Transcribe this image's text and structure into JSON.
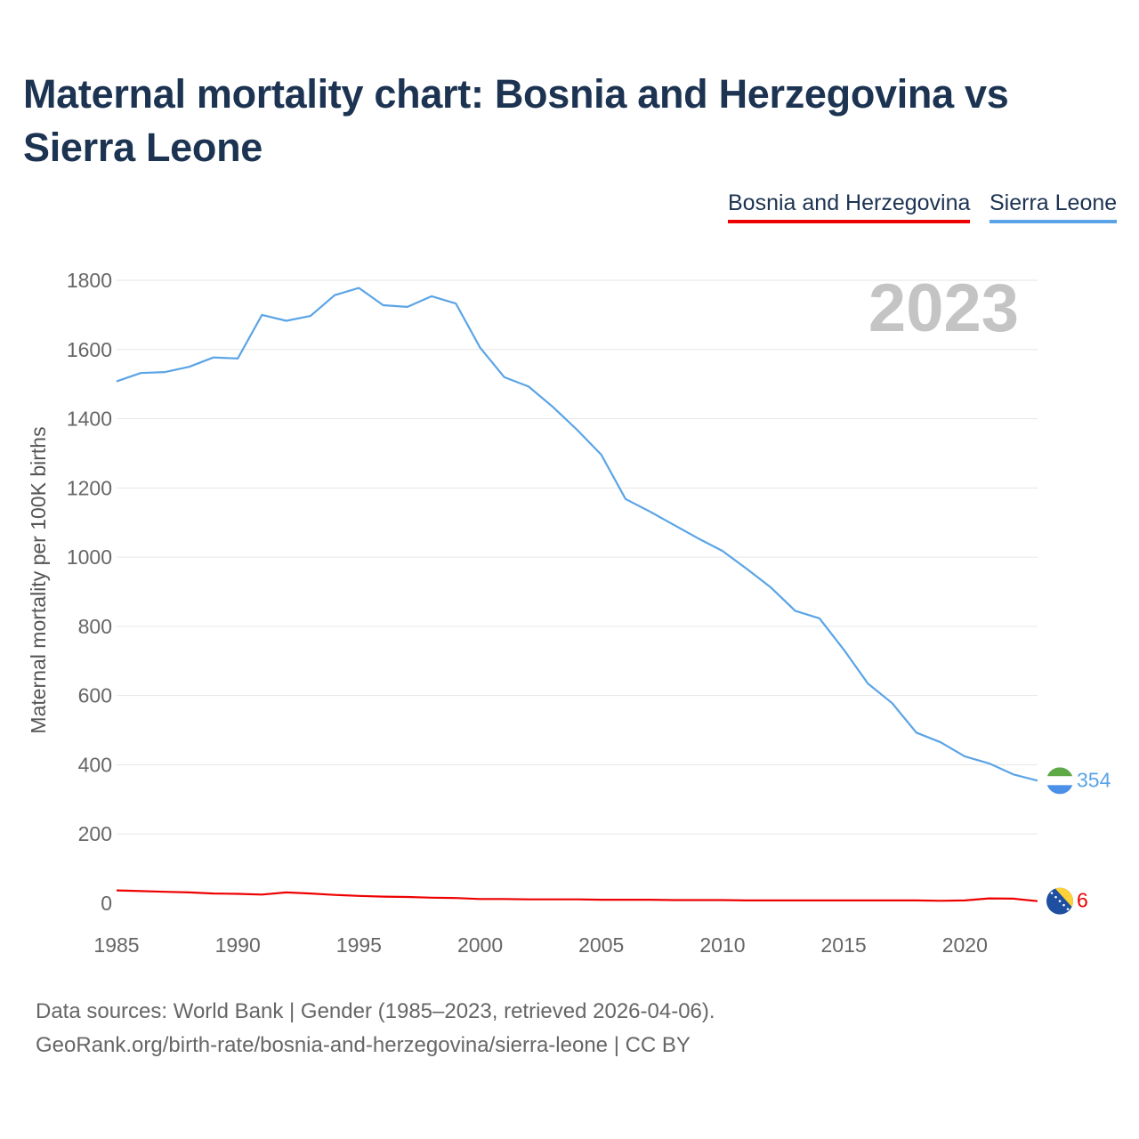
{
  "title": "Maternal mortality chart: Bosnia and Herzegovina vs Sierra Leone",
  "legend": {
    "bih": "Bosnia and Herzegovina",
    "sl": "Sierra Leone"
  },
  "year_watermark": "2023",
  "colors": {
    "title": "#1c3352",
    "bih": "#ee0000",
    "sl": "#5aa4e6",
    "grid": "#e6e6e6",
    "axis_text": "#666666",
    "watermark": "#c4c4c4"
  },
  "footer": {
    "line1": "Data sources: World Bank | Gender (1985–2023, retrieved 2026-04-06).",
    "line2": "GeoRank.org/birth-rate/bosnia-and-herzegovina/sierra-leone | CC BY"
  },
  "chart_data": {
    "type": "line",
    "title": "Maternal mortality chart: Bosnia and Herzegovina vs Sierra Leone",
    "xlabel": "",
    "ylabel": "Maternal mortality per 100K births",
    "xlim": [
      1985,
      2023
    ],
    "ylim": [
      0,
      1800
    ],
    "xticks": [
      1985,
      1990,
      1995,
      2000,
      2005,
      2010,
      2015,
      2020
    ],
    "yticks": [
      0,
      200,
      400,
      600,
      800,
      1000,
      1200,
      1400,
      1600,
      1800
    ],
    "grid": true,
    "legend_position": "top-right",
    "x": [
      1985,
      1986,
      1987,
      1988,
      1989,
      1990,
      1991,
      1992,
      1993,
      1994,
      1995,
      1996,
      1997,
      1998,
      1999,
      2000,
      2001,
      2002,
      2003,
      2004,
      2005,
      2006,
      2007,
      2008,
      2009,
      2010,
      2011,
      2012,
      2013,
      2014,
      2015,
      2016,
      2017,
      2018,
      2019,
      2020,
      2021,
      2022,
      2023
    ],
    "series": [
      {
        "name": "Sierra Leone",
        "color": "#5aa4e6",
        "end_label": "354",
        "values": [
          1508,
          1532,
          1535,
          1550,
          1577,
          1574,
          1700,
          1683,
          1697,
          1757,
          1778,
          1728,
          1723,
          1754,
          1733,
          1605,
          1520,
          1493,
          1434,
          1368,
          1296,
          1168,
          1132,
          1093,
          1054,
          1018,
          966,
          912,
          845,
          823,
          733,
          635,
          578,
          493,
          465,
          424,
          404,
          372,
          354
        ]
      },
      {
        "name": "Bosnia and Herzegovina",
        "color": "#ee0000",
        "end_label": "6",
        "values": [
          37,
          35,
          33,
          31,
          28,
          27,
          25,
          31,
          28,
          24,
          21,
          19,
          18,
          16,
          15,
          12,
          12,
          11,
          11,
          11,
          10,
          10,
          10,
          9,
          9,
          9,
          8,
          8,
          8,
          8,
          8,
          8,
          8,
          8,
          7,
          8,
          14,
          13,
          6
        ]
      }
    ]
  }
}
